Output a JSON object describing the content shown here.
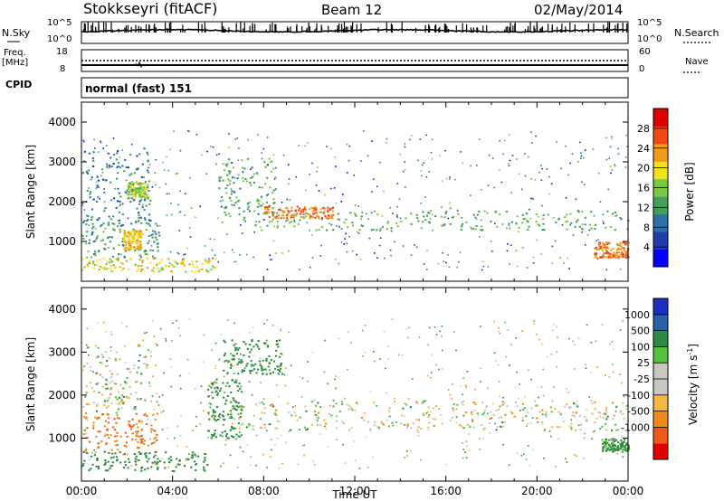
{
  "header": {
    "station": "Stokkseyri (fitACF)",
    "beam": "Beam 12",
    "date": "02/May/2014"
  },
  "noise_panel": {
    "left_label": "N.Sky",
    "right_label": "N.Search",
    "ticks_left": [
      "10^5",
      "10^0"
    ],
    "ticks_right": [
      "10^5",
      "10^0"
    ]
  },
  "freq_panel": {
    "left_label_1": "Freq.",
    "left_label_2": "[MHz]",
    "right_label": "Nave",
    "ticks_left": [
      "18",
      "8"
    ],
    "ticks_right": [
      "60",
      "0"
    ]
  },
  "cpid": {
    "label": "CPID",
    "value": "normal (fast) 151"
  },
  "colors": {
    "power_scale": [
      "#0000ff",
      "#1f3ca8",
      "#2b6fad",
      "#43a05a",
      "#78c843",
      "#f2e21a",
      "#f29a1a",
      "#f04a14",
      "#dd0000"
    ],
    "velocity_scale": [
      "#e00000",
      "#f05a14",
      "#f28a1a",
      "#f6b840",
      "#c8c8c0",
      "#c8c8c0",
      "#55c240",
      "#2e8a40",
      "#2a60a8",
      "#1a30c0"
    ],
    "ground_scatter": "#bcbcb2"
  },
  "chart_data": [
    {
      "type": "heatmap",
      "name": "power",
      "ylabel": "Slant Range [km]",
      "yticks": [
        "1000",
        "2000",
        "3000",
        "4000"
      ],
      "colorbar": {
        "label": "Power [dB]",
        "ticks": [
          "4",
          "8",
          "12",
          "16",
          "20",
          "24",
          "28"
        ],
        "range": [
          0,
          32
        ]
      },
      "ylim": [
        0,
        4500
      ],
      "xlim_hours": [
        0,
        24
      ],
      "echo_bands": [
        {
          "t0": 0.0,
          "t1": 3.0,
          "r0": 1400,
          "r1": 3300,
          "value": 9
        },
        {
          "t0": 2.0,
          "t1": 2.9,
          "r0": 2100,
          "r1": 2500,
          "value": 16
        },
        {
          "t0": 0.0,
          "t1": 3.4,
          "r0": 600,
          "r1": 1700,
          "value": 12
        },
        {
          "t0": 1.8,
          "t1": 2.6,
          "r0": 800,
          "r1": 1300,
          "value": 22
        },
        {
          "t0": 0.0,
          "t1": 6.0,
          "r0": 250,
          "r1": 600,
          "value": 20
        },
        {
          "t0": 6.0,
          "t1": 8.5,
          "r0": 1500,
          "r1": 3100,
          "value": 13
        },
        {
          "t0": 7.5,
          "t1": 24.0,
          "r0": 1300,
          "r1": 1800,
          "value": 14
        },
        {
          "t0": 8.0,
          "t1": 11.0,
          "r0": 1600,
          "r1": 1900,
          "value": 26
        },
        {
          "t0": 22.5,
          "t1": 24.0,
          "r0": 600,
          "r1": 1000,
          "value": 26
        }
      ]
    },
    {
      "type": "heatmap",
      "name": "velocity",
      "xlabel": "Time UT",
      "ylabel": "Slant Range [km]",
      "yticks": [
        "1000",
        "2000",
        "3000",
        "4000"
      ],
      "xticks": [
        "00:00",
        "04:00",
        "08:00",
        "12:00",
        "16:00",
        "20:00",
        "00:00"
      ],
      "colorbar": {
        "label": "Velocity [m s",
        "label_sup": "-1",
        "label_end": "]",
        "ticks": [
          "1000",
          "500",
          "100",
          "25",
          "-25",
          "-100",
          "-500",
          "-1000"
        ]
      },
      "ylim": [
        0,
        4500
      ],
      "xlim_hours": [
        0,
        24
      ],
      "echo_bands": [
        {
          "t0": 0.0,
          "t1": 3.0,
          "r0": 1600,
          "r1": 3200,
          "value": 0
        },
        {
          "t0": 0.0,
          "t1": 3.3,
          "r0": 700,
          "r1": 1600,
          "value": -300
        },
        {
          "t0": 0.0,
          "t1": 5.5,
          "r0": 250,
          "r1": 700,
          "value": 150
        },
        {
          "t0": 5.5,
          "t1": 7.0,
          "r0": 1000,
          "r1": 2400,
          "value": 120
        },
        {
          "t0": 6.2,
          "t1": 8.8,
          "r0": 2500,
          "r1": 3300,
          "value": 120
        },
        {
          "t0": 6.5,
          "t1": 24.0,
          "r0": 1200,
          "r1": 1900,
          "value": 0
        },
        {
          "t0": 22.8,
          "t1": 24.0,
          "r0": 700,
          "r1": 1000,
          "value": 100
        }
      ]
    }
  ]
}
